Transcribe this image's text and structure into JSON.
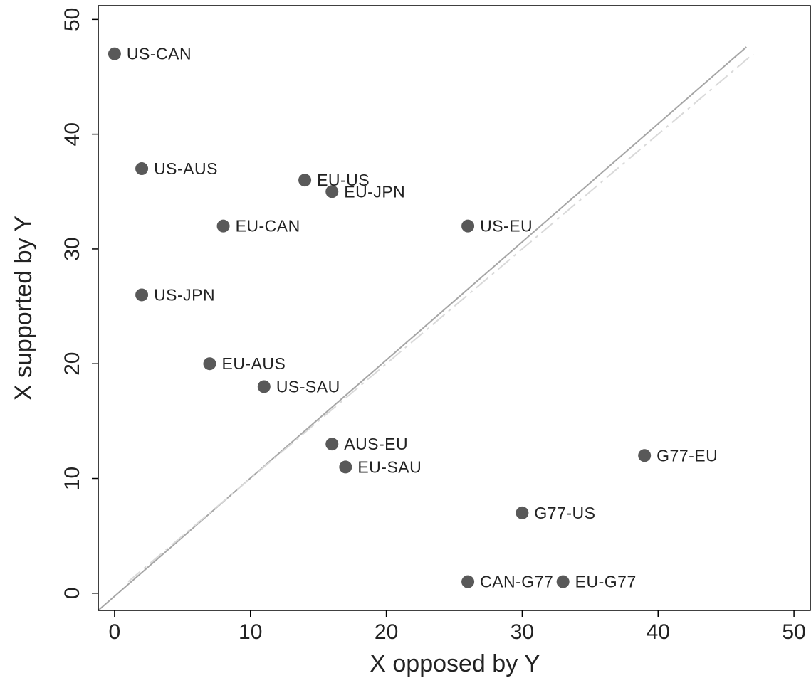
{
  "chart_data": {
    "type": "scatter",
    "title": "",
    "xlabel": "X opposed by Y",
    "ylabel": "X supported by Y",
    "xlim": [
      -1.2,
      51.2
    ],
    "ylim": [
      -1.5,
      51.2
    ],
    "xticks": [
      0,
      10,
      20,
      30,
      40,
      50
    ],
    "yticks": [
      0,
      10,
      20,
      30,
      40,
      50
    ],
    "grid": false,
    "point_color": "#595959",
    "reference_lines": [
      {
        "style": "solid",
        "color": "#a6a6a6",
        "from": [
          -1.2,
          -1.5
        ],
        "to": [
          46.5,
          47.6
        ]
      },
      {
        "style": "dashdot",
        "color": "#d9d9d9",
        "from": [
          1,
          1
        ],
        "to": [
          47,
          47
        ]
      }
    ],
    "points": [
      {
        "label": "US-CAN",
        "x": 0,
        "y": 47
      },
      {
        "label": "US-AUS",
        "x": 2,
        "y": 37
      },
      {
        "label": "EU-US",
        "x": 14,
        "y": 36
      },
      {
        "label": "EU-JPN",
        "x": 16,
        "y": 35
      },
      {
        "label": "EU-CAN",
        "x": 8,
        "y": 32
      },
      {
        "label": "US-EU",
        "x": 26,
        "y": 32
      },
      {
        "label": "US-JPN",
        "x": 2,
        "y": 26
      },
      {
        "label": "EU-AUS",
        "x": 7,
        "y": 20
      },
      {
        "label": "US-SAU",
        "x": 11,
        "y": 18
      },
      {
        "label": "AUS-EU",
        "x": 16,
        "y": 13
      },
      {
        "label": "EU-SAU",
        "x": 17,
        "y": 11
      },
      {
        "label": "G77-EU",
        "x": 39,
        "y": 12
      },
      {
        "label": "G77-US",
        "x": 30,
        "y": 7
      },
      {
        "label": "CAN-G77",
        "x": 26,
        "y": 1
      },
      {
        "label": "EU-G77",
        "x": 33,
        "y": 1
      }
    ]
  }
}
